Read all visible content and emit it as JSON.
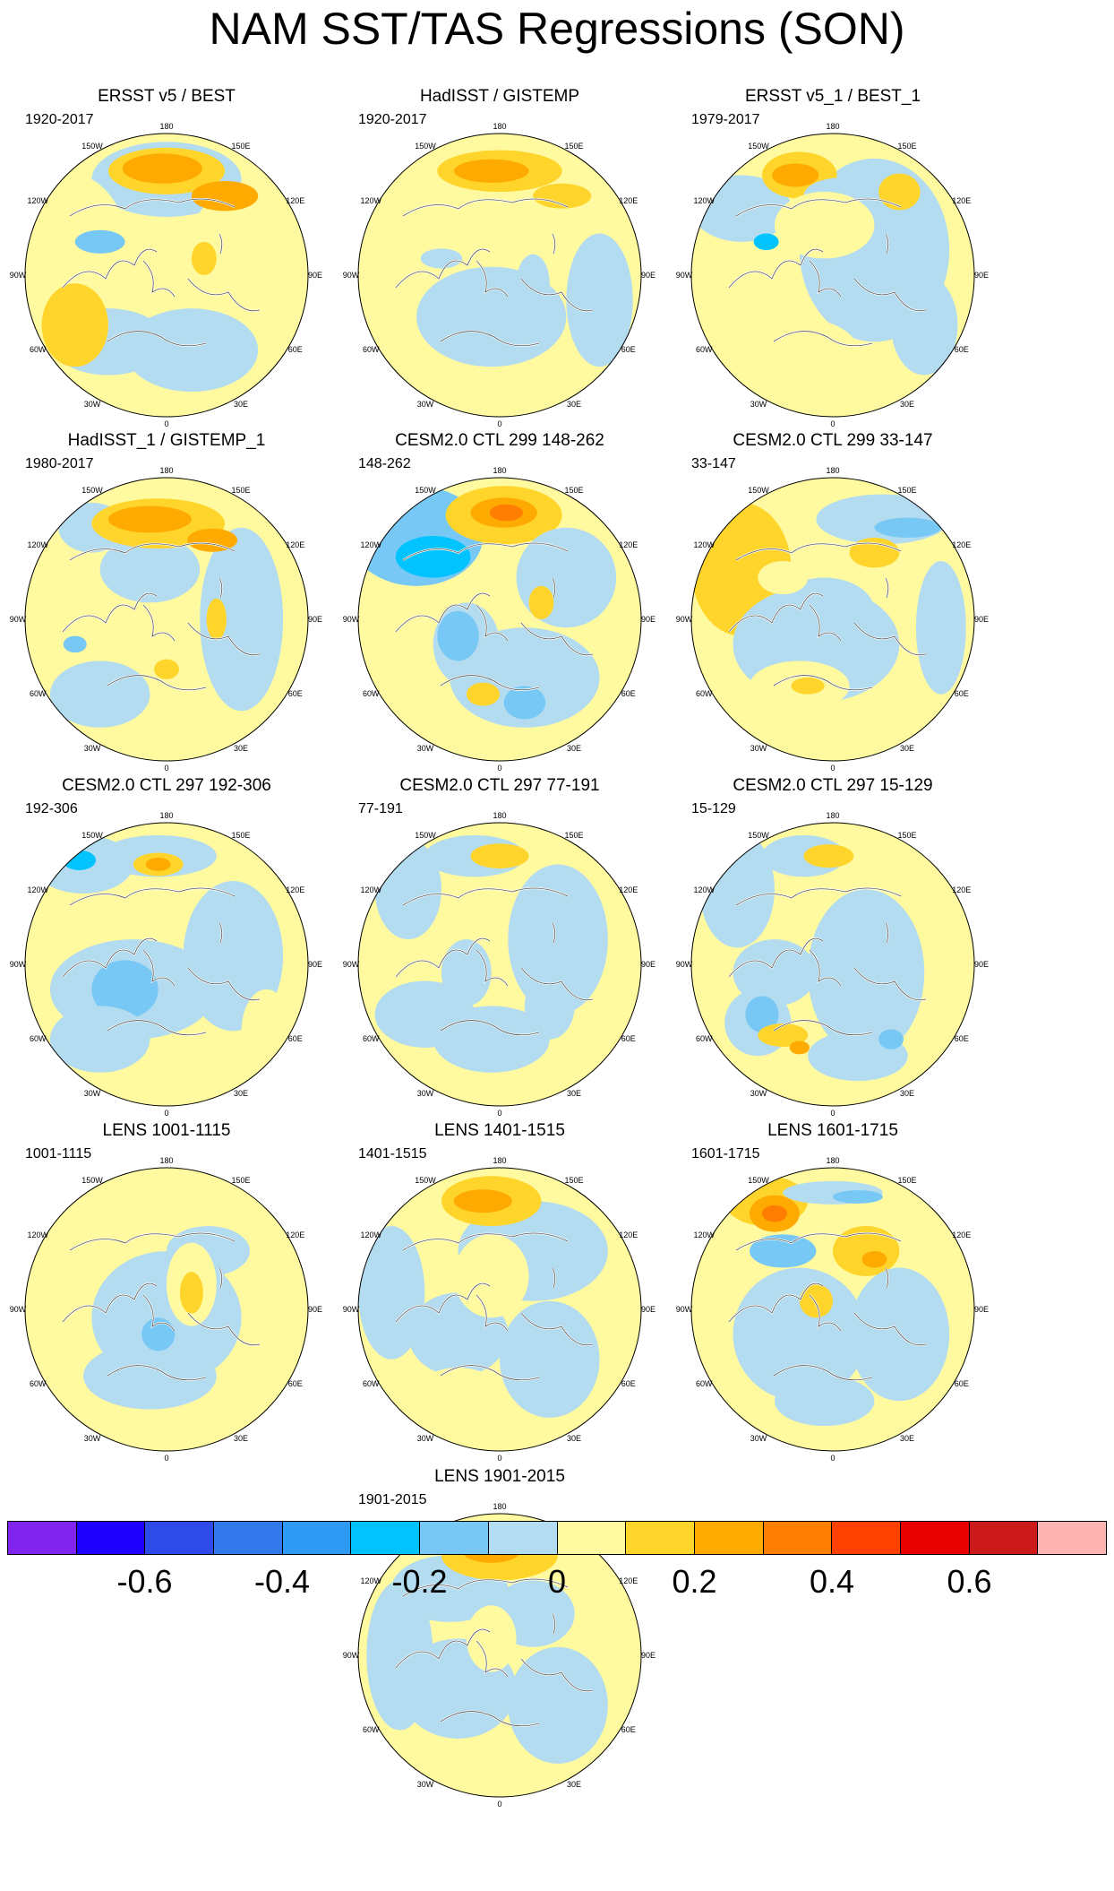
{
  "title": "NAM SST/TAS Regressions (SON)",
  "longitude_labels": [
    "180",
    "150E",
    "120E",
    "90E",
    "60E",
    "30E",
    "0",
    "30W",
    "60W",
    "90W",
    "120W",
    "150W"
  ],
  "panels": [
    {
      "title": "ERSST v5 / BEST",
      "years": "1920-2017"
    },
    {
      "title": "HadISST / GISTEMP",
      "years": "1920-2017"
    },
    {
      "title": "ERSST v5_1 / BEST_1",
      "years": "1979-2017"
    },
    {
      "title": "HadISST_1 / GISTEMP_1",
      "years": "1980-2017"
    },
    {
      "title": "CESM2.0 CTL 299 148-262",
      "years": "148-262"
    },
    {
      "title": "CESM2.0 CTL 299 33-147",
      "years": "33-147"
    },
    {
      "title": "CESM2.0 CTL 297 192-306",
      "years": "192-306"
    },
    {
      "title": "CESM2.0 CTL 297 77-191",
      "years": "77-191"
    },
    {
      "title": "CESM2.0 CTL 297 15-129",
      "years": "15-129"
    },
    {
      "title": "LENS 1001-1115",
      "years": "1001-1115"
    },
    {
      "title": "LENS 1401-1515",
      "years": "1401-1515"
    },
    {
      "title": "LENS 1601-1715",
      "years": "1601-1715"
    },
    {
      "title": "LENS 1901-2015",
      "years": "1901-2015"
    }
  ],
  "colorbar": {
    "colors": [
      "#8224f0",
      "#1e00ff",
      "#2e4ae8",
      "#3479ec",
      "#2d9bf5",
      "#00c3ff",
      "#78c8f5",
      "#b4dcf0",
      "#fff9a0",
      "#ffd52c",
      "#ffaa00",
      "#ff7d00",
      "#ff4100",
      "#e80000",
      "#cc1a1a",
      "#ffb4b4"
    ],
    "labels": [
      "-0.6",
      "-0.4",
      "-0.2",
      "0",
      "0.2",
      "0.4",
      "0.6"
    ]
  }
}
